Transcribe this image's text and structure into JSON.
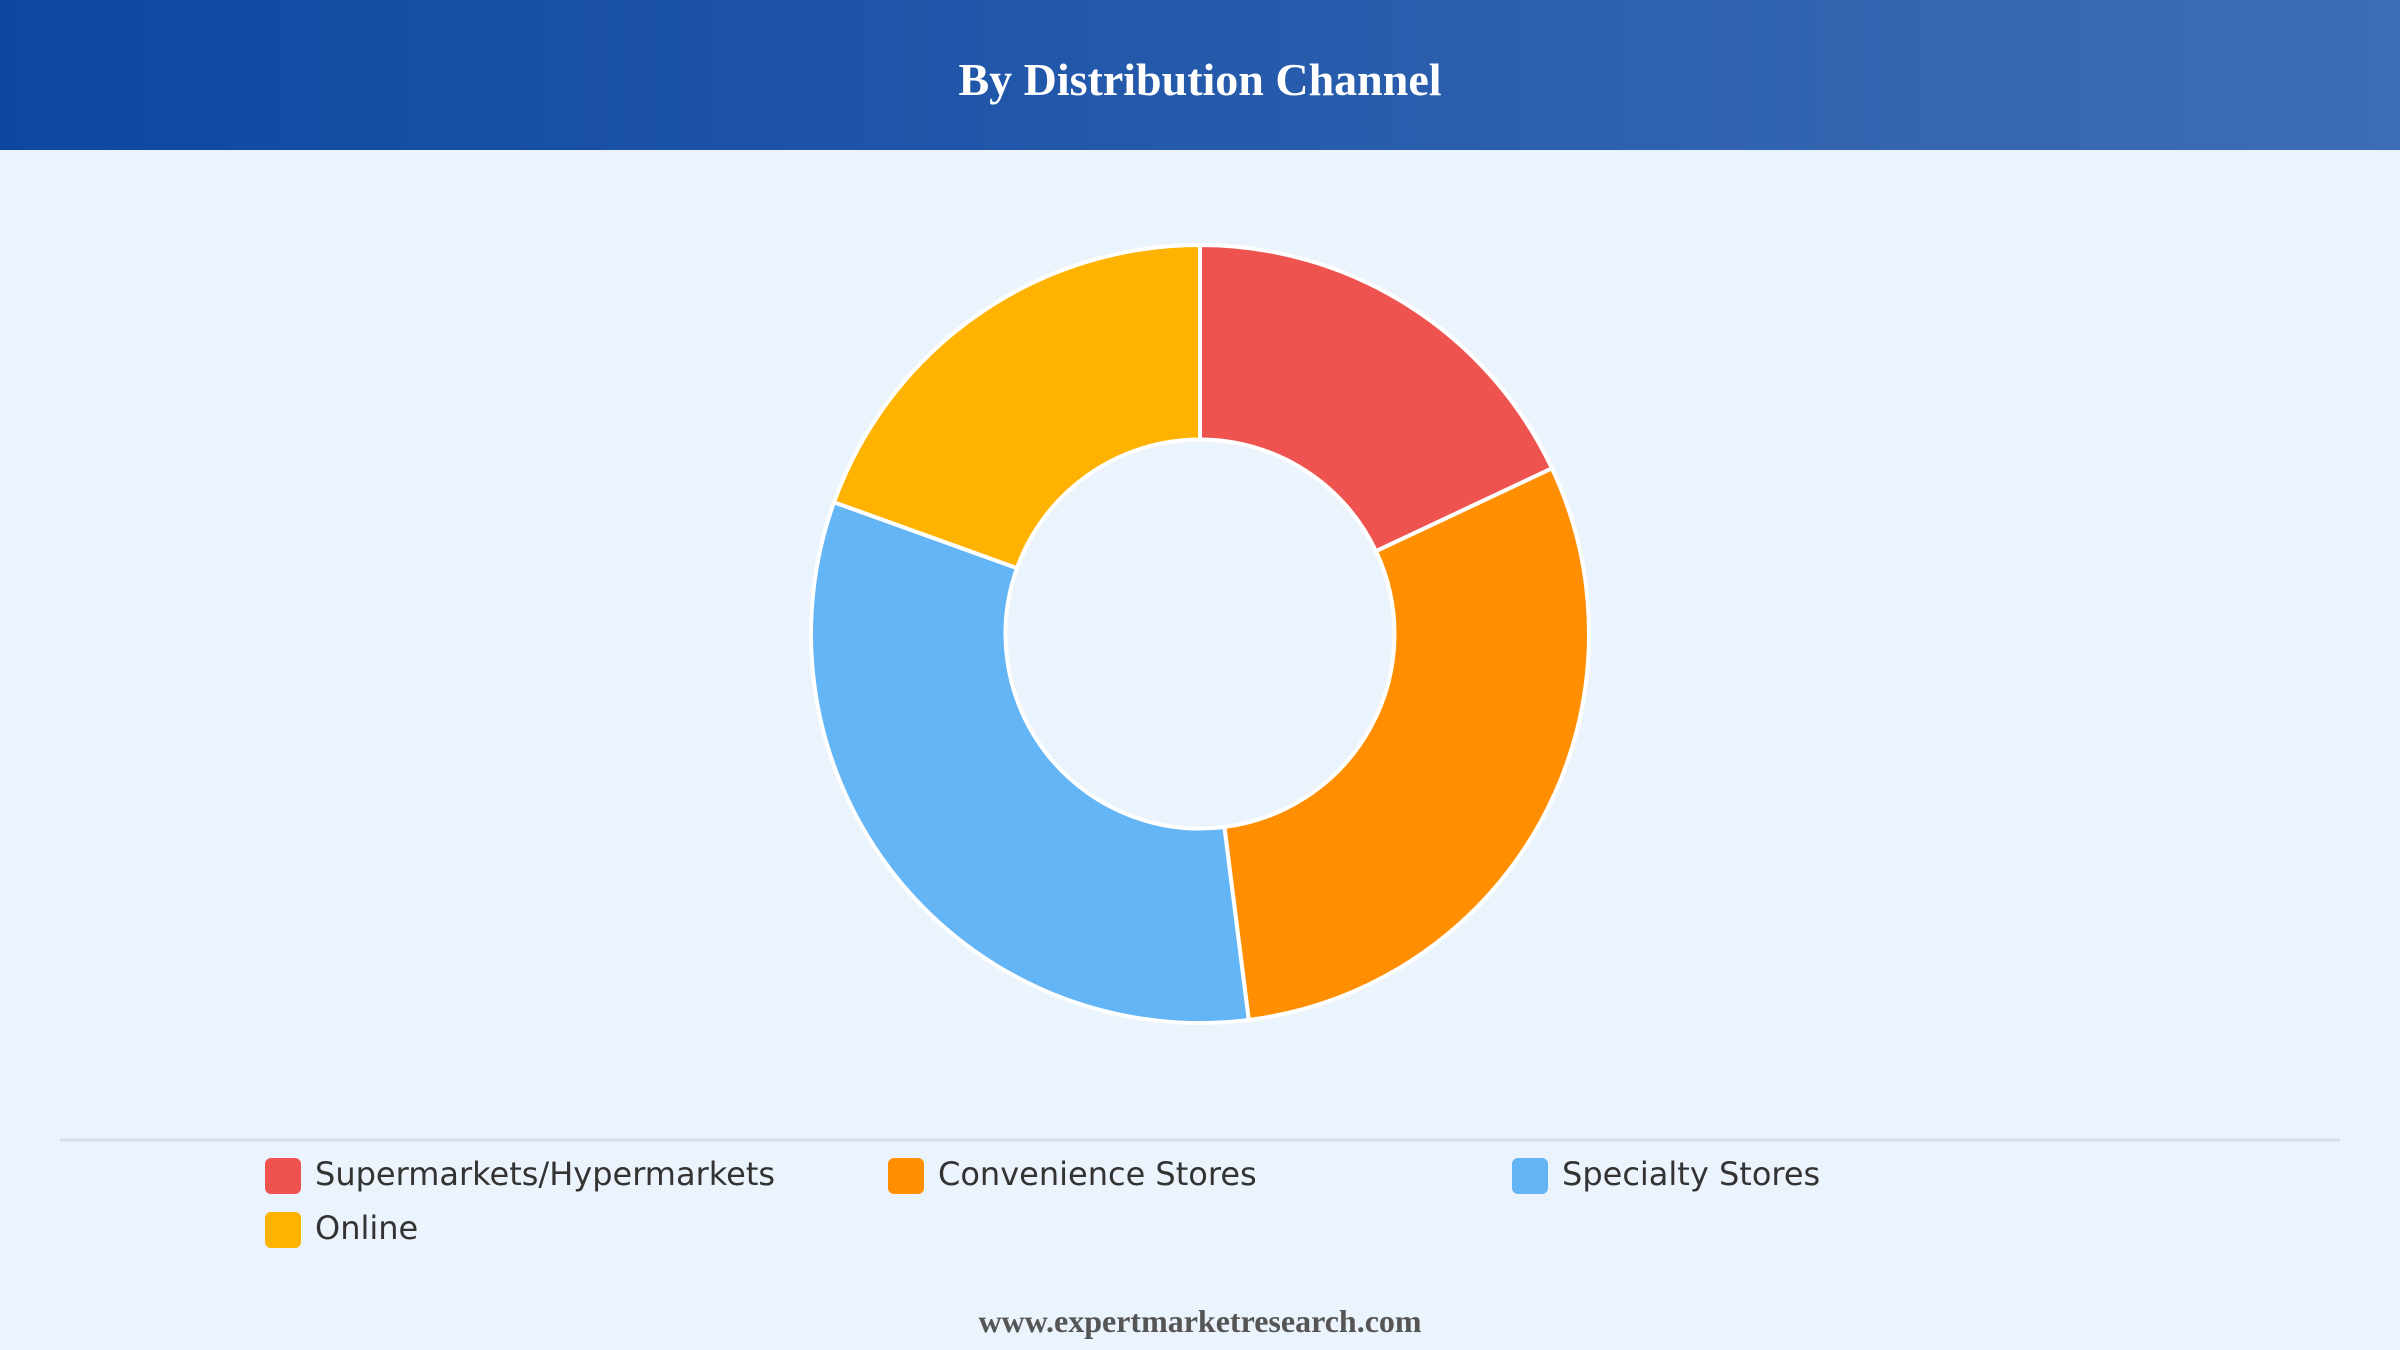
{
  "chart_data": {
    "type": "pie",
    "title": "By Distribution Channel",
    "categories": [
      "Supermarkets/Hypermarkets",
      "Convenience Stores",
      "Specialty Stores",
      "Online"
    ],
    "values": [
      18,
      30,
      32.5,
      19.5
    ],
    "colors": [
      "#ef5350",
      "#ff8f00",
      "#64b5f6",
      "#ffb300"
    ],
    "hole": 0.5
  },
  "footer": "www.expertmarketresearch.com"
}
